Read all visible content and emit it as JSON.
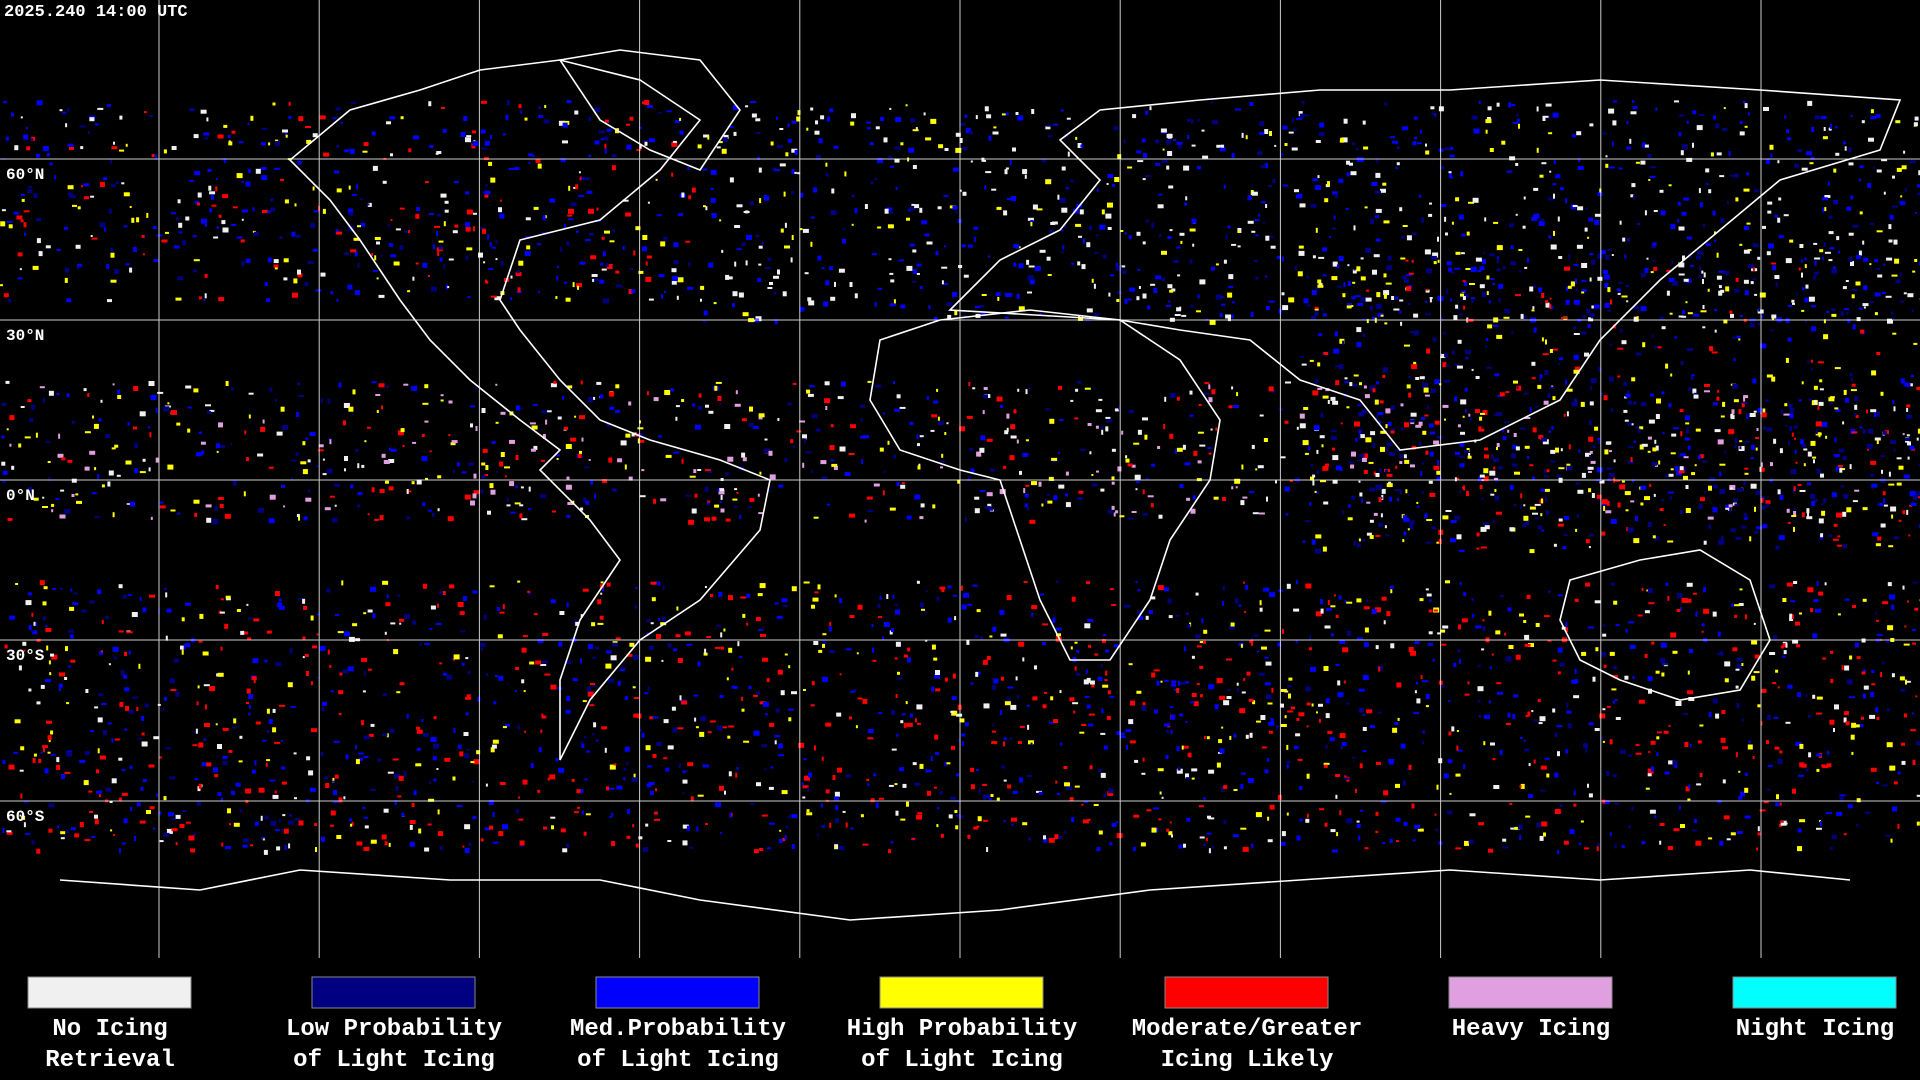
{
  "header": {
    "timestamp": "2025.240 14:00 UTC"
  },
  "latitude_labels": [
    "60°N",
    "30°N",
    "0°N",
    "30°S",
    "60°S"
  ],
  "legend": {
    "items": [
      {
        "lines": [
          "No Icing",
          "Retrieval"
        ],
        "color": "#f0f0f0"
      },
      {
        "lines": [
          "Low Probability",
          "of Light Icing"
        ],
        "color": "#000080"
      },
      {
        "lines": [
          "Med.Probability",
          "of Light Icing"
        ],
        "color": "#0000ff"
      },
      {
        "lines": [
          "High Probability",
          "of Light Icing"
        ],
        "color": "#ffff00"
      },
      {
        "lines": [
          "Moderate/Greater",
          "Icing Likely"
        ],
        "color": "#ff0000"
      },
      {
        "lines": [
          "Heavy Icing"
        ],
        "color": "#e0a0e0"
      },
      {
        "lines": [
          "Night Icing"
        ],
        "color": "#00ffff"
      }
    ]
  }
}
